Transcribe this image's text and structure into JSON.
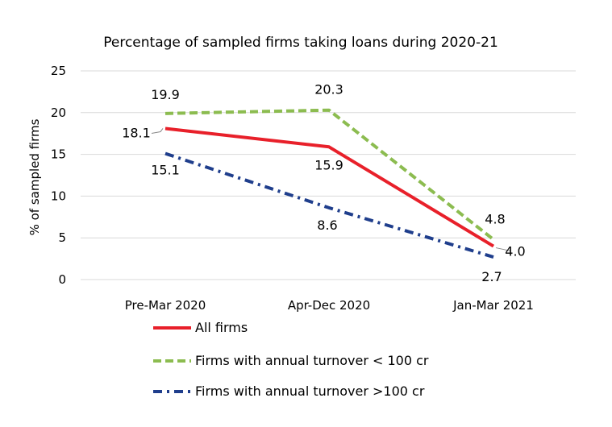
{
  "chart_data": {
    "type": "line",
    "title": "Percentage of sampled firms taking loans during 2020-21",
    "xlabel": "",
    "ylabel": "% of sampled firms",
    "categories": [
      "Pre-Mar 2020",
      "Apr-Dec 2020",
      "Jan-Mar 2021"
    ],
    "ylim": [
      0,
      25
    ],
    "yticks": [
      0,
      5,
      10,
      15,
      20,
      25
    ],
    "grid": true,
    "legend_position": "bottom",
    "series": [
      {
        "name": "All firms",
        "values": [
          18.1,
          15.9,
          4.0
        ],
        "labels": [
          "18.1",
          "15.9",
          "4.0"
        ],
        "color": "#e8202a",
        "style": "solid"
      },
      {
        "name": "Firms with annual turnover < 100 cr",
        "values": [
          19.9,
          20.3,
          4.8
        ],
        "labels": [
          "19.9",
          "20.3",
          "4.8"
        ],
        "color": "#8cbc50",
        "style": "dashed"
      },
      {
        "name": "Firms with annual turnover >100 cr",
        "values": [
          15.1,
          8.6,
          2.7
        ],
        "labels": [
          "15.1",
          "8.6",
          "2.7"
        ],
        "color": "#1f3e8c",
        "style": "dashdot"
      }
    ]
  }
}
